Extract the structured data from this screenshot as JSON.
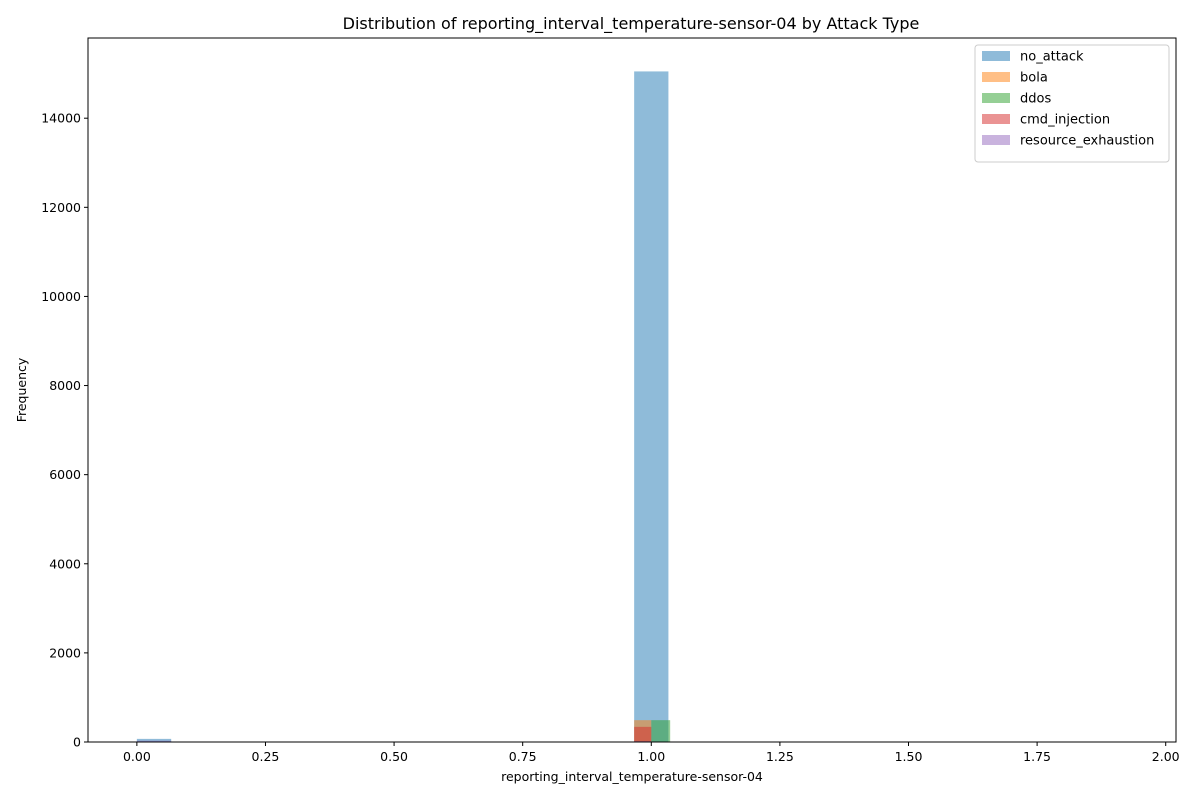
{
  "chart_data": {
    "type": "bar",
    "title": "Distribution of reporting_interval_temperature-sensor-04 by Attack Type",
    "xlabel": "reporting_interval_temperature-sensor-04",
    "ylabel": "Frequency",
    "xlim": [
      -0.095,
      2.02
    ],
    "ylim": [
      0,
      15800
    ],
    "xticks": [
      0.0,
      0.25,
      0.5,
      0.75,
      1.0,
      1.25,
      1.5,
      1.75,
      2.0
    ],
    "xtick_labels": [
      "0.00",
      "0.25",
      "0.50",
      "0.75",
      "1.00",
      "1.25",
      "1.50",
      "1.75",
      "2.00"
    ],
    "yticks": [
      0,
      2000,
      4000,
      6000,
      8000,
      10000,
      12000,
      14000
    ],
    "ytick_labels": [
      "0",
      "2000",
      "4000",
      "6000",
      "8000",
      "10000",
      "12000",
      "14000"
    ],
    "grid": false,
    "legend_position": "top-right",
    "series": [
      {
        "name": "no_attack",
        "color": "#1f77b4",
        "bins": [
          {
            "x0": 0.0,
            "x1": 0.0667,
            "value": 70
          },
          {
            "x0": 0.9667,
            "x1": 1.0333,
            "value": 15050
          }
        ]
      },
      {
        "name": "bola",
        "color": "#ff7f0e",
        "bins": [
          {
            "x0": 0.9667,
            "x1": 1.0,
            "value": 490
          }
        ]
      },
      {
        "name": "ddos",
        "color": "#2ca02c",
        "bins": [
          {
            "x0": 1.0,
            "x1": 1.0333,
            "value": 490
          },
          {
            "x0": 1.0333,
            "x1": 1.0367,
            "value": 490
          }
        ]
      },
      {
        "name": "cmd_injection",
        "color": "#d62728",
        "bins": [
          {
            "x0": 0.9667,
            "x1": 1.0,
            "value": 340
          }
        ]
      },
      {
        "name": "resource_exhaustion",
        "color": "#9467bd",
        "bins": [
          {
            "x0": 0.0,
            "x1": 0.0667,
            "value": 30
          },
          {
            "x0": 0.9667,
            "x1": 1.0,
            "value": 20
          }
        ]
      }
    ]
  }
}
